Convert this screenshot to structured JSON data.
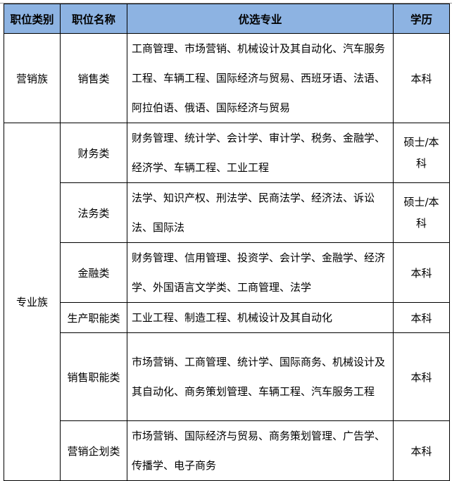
{
  "header_color": "#8DB3E2",
  "headers": [
    "职位类别",
    "职位名称",
    "优选专业",
    "学历"
  ],
  "groups": [
    {
      "category": "营销族",
      "rows": [
        {
          "name": "销售类",
          "majors": "工商管理、市场营销、机械设计及其自动化、汽车服务工程、车辆工程、国际经济与贸易、西班牙语、法语、阿拉伯语、俄语、国际经济与贸易",
          "degree": "本科"
        }
      ]
    },
    {
      "category": "专业族",
      "rows": [
        {
          "name": "财务类",
          "majors": "财务管理、统计学、会计学、审计学、税务、金融学、经济学、车辆工程、工业工程",
          "degree": "硕士/本科"
        },
        {
          "name": "法务类",
          "majors": "法学、知识产权、刑法学、民商法学、经济法、诉讼法、国际法",
          "degree": "硕士/本科"
        },
        {
          "name": "金融类",
          "majors": "财务管理、信用管理、投资学、会计学、金融学、经济学、外国语言文学类、工商管理、法学",
          "degree": "本科"
        },
        {
          "name": "生产职能类",
          "majors": "工业工程、制造工程、机械设计及其自动化",
          "degree": "本科"
        },
        {
          "name": "销售职能类",
          "majors": "市场营销、工商管理、统计学、国际商务、机械设计及其自动化、商务策划管理、车辆工程、汽车服务工程",
          "degree": "本科"
        },
        {
          "name": "营销企划类",
          "majors": "市场营销、国际经济与贸易、商务策划管理、广告学、传播学、电子商务",
          "degree": "本科"
        }
      ]
    }
  ]
}
